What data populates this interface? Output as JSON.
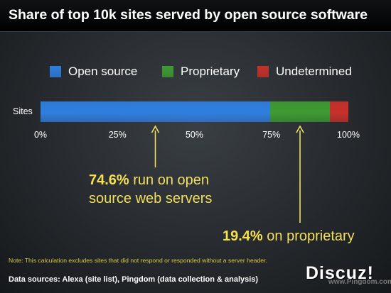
{
  "title": "Share of top 10k sites served by open source software",
  "chart_data": {
    "type": "bar",
    "orientation": "horizontal",
    "stacked": true,
    "categories": [
      "Sites"
    ],
    "series": [
      {
        "name": "Open source",
        "values": [
          74.6
        ],
        "color": "#2f7fe0"
      },
      {
        "name": "Proprietary",
        "values": [
          19.4
        ],
        "color": "#3e9b32"
      },
      {
        "name": "Undetermined",
        "values": [
          6.0
        ],
        "color": "#c9302a"
      }
    ],
    "xlim": [
      0,
      100
    ],
    "x_ticks": [
      "0%",
      "25%",
      "50%",
      "75%",
      "100%"
    ],
    "legend_position": "top",
    "annotations": [
      {
        "value": "74.6%",
        "text": " run on open",
        "text2": "source web servers",
        "points_to": 37.3
      },
      {
        "value": "19.4%",
        "text": " on proprietary",
        "points_to": 84.3
      }
    ]
  },
  "note": "Note: This calculation excludes sites that did not respond or responded without a server header.",
  "sources": "Data sources: Alexa (site list), Pingdom (data collection & analysis)",
  "watermark": {
    "url": "www.Pingdom.com",
    "site": "Discuz!"
  }
}
